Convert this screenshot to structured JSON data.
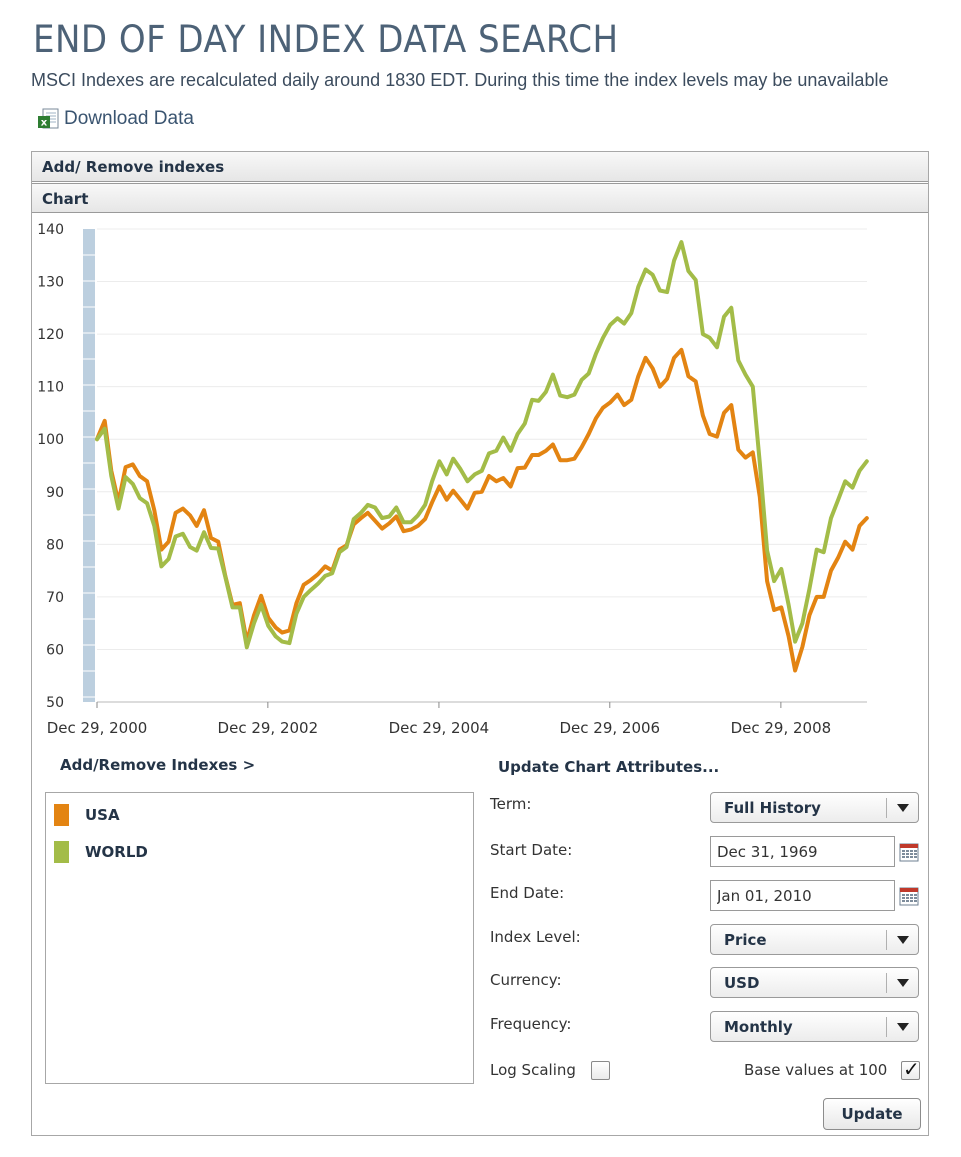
{
  "page": {
    "title": "END OF DAY INDEX DATA SEARCH",
    "subtitle": "MSCI Indexes are recalculated daily around 1830 EDT. During this time the index levels may be unavailable",
    "download_label": "Download Data"
  },
  "panel": {
    "add_remove_bar": "Add/ Remove indexes",
    "chart_bar": "Chart"
  },
  "colors": {
    "usa": "#e38412",
    "world": "#a3bc48",
    "axis_band": "#bccfdf",
    "grid": "#ececec"
  },
  "chart_data": {
    "type": "line",
    "title": "",
    "xlabel": "",
    "ylabel": "",
    "ylim": [
      50,
      140
    ],
    "y_ticks": [
      140,
      130,
      120,
      110,
      100,
      90,
      80,
      70,
      60,
      50
    ],
    "xlim": [
      "2000-12-29",
      "2010-01-01"
    ],
    "x_tick_labels": [
      "Dec 29, 2000",
      "Dec 29, 2002",
      "Dec 29, 2004",
      "Dec 29, 2006",
      "Dec 29, 2008"
    ],
    "x_tick_dates": [
      "2000-12-29",
      "2002-12-29",
      "2004-12-29",
      "2006-12-29",
      "2008-12-29"
    ],
    "grid": true,
    "series": [
      {
        "name": "USA",
        "color": "#e38412",
        "points": [
          [
            "2000-12-29",
            100.0
          ],
          [
            "2001-01-31",
            103.5
          ],
          [
            "2001-02-28",
            94.0
          ],
          [
            "2001-03-31",
            88.0
          ],
          [
            "2001-04-30",
            94.7
          ],
          [
            "2001-05-31",
            95.2
          ],
          [
            "2001-06-30",
            93.0
          ],
          [
            "2001-07-31",
            92.0
          ],
          [
            "2001-08-31",
            86.5
          ],
          [
            "2001-09-30",
            79.0
          ],
          [
            "2001-10-31",
            80.5
          ],
          [
            "2001-11-30",
            86.0
          ],
          [
            "2001-12-31",
            86.8
          ],
          [
            "2002-01-31",
            85.5
          ],
          [
            "2002-02-28",
            83.5
          ],
          [
            "2002-03-31",
            86.5
          ],
          [
            "2002-04-30",
            81.2
          ],
          [
            "2002-05-31",
            80.5
          ],
          [
            "2002-06-30",
            74.0
          ],
          [
            "2002-07-31",
            68.5
          ],
          [
            "2002-08-31",
            68.8
          ],
          [
            "2002-09-30",
            61.5
          ],
          [
            "2002-10-31",
            66.5
          ],
          [
            "2002-11-30",
            70.2
          ],
          [
            "2002-12-31",
            66.0
          ],
          [
            "2003-01-31",
            64.2
          ],
          [
            "2003-02-28",
            63.2
          ],
          [
            "2003-03-31",
            63.6
          ],
          [
            "2003-04-30",
            68.8
          ],
          [
            "2003-05-31",
            72.3
          ],
          [
            "2003-06-30",
            73.2
          ],
          [
            "2003-07-31",
            74.3
          ],
          [
            "2003-08-31",
            75.8
          ],
          [
            "2003-09-30",
            75.0
          ],
          [
            "2003-10-31",
            79.0
          ],
          [
            "2003-11-30",
            79.8
          ],
          [
            "2003-12-31",
            83.8
          ],
          [
            "2004-01-31",
            85.0
          ],
          [
            "2004-02-29",
            86.0
          ],
          [
            "2004-03-31",
            84.5
          ],
          [
            "2004-04-30",
            83.0
          ],
          [
            "2004-05-31",
            84.0
          ],
          [
            "2004-06-30",
            85.3
          ],
          [
            "2004-07-31",
            82.5
          ],
          [
            "2004-08-31",
            82.8
          ],
          [
            "2004-09-30",
            83.5
          ],
          [
            "2004-10-31",
            84.8
          ],
          [
            "2004-11-30",
            88.0
          ],
          [
            "2004-12-31",
            91.0
          ],
          [
            "2005-01-31",
            88.5
          ],
          [
            "2005-02-28",
            90.2
          ],
          [
            "2005-03-31",
            88.5
          ],
          [
            "2005-04-30",
            86.8
          ],
          [
            "2005-05-31",
            89.8
          ],
          [
            "2005-06-30",
            90.0
          ],
          [
            "2005-07-31",
            93.0
          ],
          [
            "2005-08-31",
            92.0
          ],
          [
            "2005-09-30",
            92.6
          ],
          [
            "2005-10-31",
            91.0
          ],
          [
            "2005-11-30",
            94.5
          ],
          [
            "2005-12-31",
            94.6
          ],
          [
            "2006-01-31",
            97.0
          ],
          [
            "2006-02-28",
            97.0
          ],
          [
            "2006-03-31",
            97.8
          ],
          [
            "2006-04-30",
            99.0
          ],
          [
            "2006-05-31",
            96.0
          ],
          [
            "2006-06-30",
            96.0
          ],
          [
            "2006-07-31",
            96.3
          ],
          [
            "2006-08-31",
            98.5
          ],
          [
            "2006-09-30",
            101.0
          ],
          [
            "2006-10-31",
            104.0
          ],
          [
            "2006-11-30",
            106.0
          ],
          [
            "2006-12-31",
            107.0
          ],
          [
            "2007-01-31",
            108.5
          ],
          [
            "2007-02-28",
            106.5
          ],
          [
            "2007-03-31",
            107.5
          ],
          [
            "2007-04-30",
            112.0
          ],
          [
            "2007-05-31",
            115.5
          ],
          [
            "2007-06-30",
            113.5
          ],
          [
            "2007-07-31",
            110.0
          ],
          [
            "2007-08-31",
            111.5
          ],
          [
            "2007-09-30",
            115.5
          ],
          [
            "2007-10-31",
            117.0
          ],
          [
            "2007-11-30",
            112.0
          ],
          [
            "2007-12-31",
            111.0
          ],
          [
            "2008-01-31",
            104.5
          ],
          [
            "2008-02-29",
            101.0
          ],
          [
            "2008-03-31",
            100.5
          ],
          [
            "2008-04-30",
            105.0
          ],
          [
            "2008-05-31",
            106.5
          ],
          [
            "2008-06-30",
            98.0
          ],
          [
            "2008-07-31",
            96.5
          ],
          [
            "2008-08-31",
            97.5
          ],
          [
            "2008-09-30",
            89.0
          ],
          [
            "2008-10-31",
            73.0
          ],
          [
            "2008-11-30",
            67.5
          ],
          [
            "2008-12-31",
            68.0
          ],
          [
            "2009-01-31",
            62.5
          ],
          [
            "2009-02-28",
            56.0
          ],
          [
            "2009-03-31",
            60.5
          ],
          [
            "2009-04-30",
            66.5
          ],
          [
            "2009-05-31",
            70.0
          ],
          [
            "2009-06-30",
            70.0
          ],
          [
            "2009-07-31",
            75.0
          ],
          [
            "2009-08-31",
            77.5
          ],
          [
            "2009-09-30",
            80.5
          ],
          [
            "2009-10-31",
            79.0
          ],
          [
            "2009-11-30",
            83.5
          ],
          [
            "2009-12-31",
            85.0
          ]
        ]
      },
      {
        "name": "WORLD",
        "color": "#a3bc48",
        "points": [
          [
            "2000-12-29",
            100.0
          ],
          [
            "2001-01-31",
            102.0
          ],
          [
            "2001-02-28",
            93.0
          ],
          [
            "2001-03-31",
            86.8
          ],
          [
            "2001-04-30",
            92.8
          ],
          [
            "2001-05-31",
            91.5
          ],
          [
            "2001-06-30",
            88.8
          ],
          [
            "2001-07-31",
            87.8
          ],
          [
            "2001-08-31",
            83.5
          ],
          [
            "2001-09-30",
            75.8
          ],
          [
            "2001-10-31",
            77.2
          ],
          [
            "2001-11-30",
            81.5
          ],
          [
            "2001-12-31",
            82.0
          ],
          [
            "2002-01-31",
            79.5
          ],
          [
            "2002-02-28",
            78.8
          ],
          [
            "2002-03-31",
            82.3
          ],
          [
            "2002-04-30",
            79.3
          ],
          [
            "2002-05-31",
            79.2
          ],
          [
            "2002-06-30",
            73.8
          ],
          [
            "2002-07-31",
            68.0
          ],
          [
            "2002-08-31",
            68.0
          ],
          [
            "2002-09-30",
            60.4
          ],
          [
            "2002-10-31",
            65.0
          ],
          [
            "2002-11-30",
            68.5
          ],
          [
            "2002-12-31",
            64.5
          ],
          [
            "2003-01-31",
            62.5
          ],
          [
            "2003-02-28",
            61.5
          ],
          [
            "2003-03-31",
            61.2
          ],
          [
            "2003-04-30",
            66.8
          ],
          [
            "2003-05-31",
            70.0
          ],
          [
            "2003-06-30",
            71.3
          ],
          [
            "2003-07-31",
            72.5
          ],
          [
            "2003-08-31",
            74.0
          ],
          [
            "2003-09-30",
            74.5
          ],
          [
            "2003-10-31",
            78.5
          ],
          [
            "2003-11-30",
            79.5
          ],
          [
            "2003-12-31",
            84.8
          ],
          [
            "2004-01-31",
            86.0
          ],
          [
            "2004-02-29",
            87.5
          ],
          [
            "2004-03-31",
            87.0
          ],
          [
            "2004-04-30",
            85.0
          ],
          [
            "2004-05-31",
            85.3
          ],
          [
            "2004-06-30",
            87.0
          ],
          [
            "2004-07-31",
            84.2
          ],
          [
            "2004-08-31",
            84.2
          ],
          [
            "2004-09-30",
            85.5
          ],
          [
            "2004-10-31",
            87.5
          ],
          [
            "2004-11-30",
            92.0
          ],
          [
            "2004-12-31",
            95.8
          ],
          [
            "2005-01-31",
            93.3
          ],
          [
            "2005-02-28",
            96.3
          ],
          [
            "2005-03-31",
            94.3
          ],
          [
            "2005-04-30",
            92.0
          ],
          [
            "2005-05-31",
            93.3
          ],
          [
            "2005-06-30",
            94.0
          ],
          [
            "2005-07-31",
            97.3
          ],
          [
            "2005-08-31",
            97.8
          ],
          [
            "2005-09-30",
            100.3
          ],
          [
            "2005-10-31",
            97.8
          ],
          [
            "2005-11-30",
            101.0
          ],
          [
            "2005-12-31",
            103.0
          ],
          [
            "2006-01-31",
            107.5
          ],
          [
            "2006-02-28",
            107.3
          ],
          [
            "2006-03-31",
            109.0
          ],
          [
            "2006-04-30",
            112.3
          ],
          [
            "2006-05-31",
            108.3
          ],
          [
            "2006-06-30",
            108.0
          ],
          [
            "2006-07-31",
            108.5
          ],
          [
            "2006-08-31",
            111.3
          ],
          [
            "2006-09-30",
            112.5
          ],
          [
            "2006-10-31",
            116.3
          ],
          [
            "2006-11-30",
            119.3
          ],
          [
            "2006-12-31",
            121.8
          ],
          [
            "2007-01-31",
            123.0
          ],
          [
            "2007-02-28",
            122.0
          ],
          [
            "2007-03-31",
            124.0
          ],
          [
            "2007-04-30",
            129.0
          ],
          [
            "2007-05-31",
            132.3
          ],
          [
            "2007-06-30",
            131.3
          ],
          [
            "2007-07-31",
            128.3
          ],
          [
            "2007-08-31",
            128.0
          ],
          [
            "2007-09-30",
            134.0
          ],
          [
            "2007-10-31",
            137.5
          ],
          [
            "2007-11-30",
            132.0
          ],
          [
            "2007-12-31",
            130.3
          ],
          [
            "2008-01-31",
            120.0
          ],
          [
            "2008-02-29",
            119.3
          ],
          [
            "2008-03-31",
            117.5
          ],
          [
            "2008-04-30",
            123.3
          ],
          [
            "2008-05-31",
            125.0
          ],
          [
            "2008-06-30",
            115.0
          ],
          [
            "2008-07-31",
            112.3
          ],
          [
            "2008-08-31",
            110.0
          ],
          [
            "2008-09-30",
            95.5
          ],
          [
            "2008-10-31",
            78.8
          ],
          [
            "2008-11-30",
            73.0
          ],
          [
            "2008-12-31",
            75.3
          ],
          [
            "2009-01-31",
            68.5
          ],
          [
            "2009-02-28",
            61.5
          ],
          [
            "2009-03-31",
            65.0
          ],
          [
            "2009-04-30",
            71.5
          ],
          [
            "2009-05-31",
            79.0
          ],
          [
            "2009-06-30",
            78.5
          ],
          [
            "2009-07-31",
            85.0
          ],
          [
            "2009-08-31",
            88.5
          ],
          [
            "2009-09-30",
            92.0
          ],
          [
            "2009-10-31",
            90.8
          ],
          [
            "2009-11-30",
            94.0
          ],
          [
            "2009-12-31",
            95.8
          ]
        ]
      }
    ]
  },
  "indexes": {
    "title": "Add/Remove Indexes >",
    "items": [
      {
        "name": "USA",
        "color": "#e38412"
      },
      {
        "name": "WORLD",
        "color": "#a3bc48"
      }
    ]
  },
  "attributes": {
    "title": "Update Chart Attributes...",
    "term_label": "Term:",
    "term_value": "Full History",
    "start_label": "Start Date:",
    "start_value": "Dec 31, 1969",
    "end_label": "End Date:",
    "end_value": "Jan 01, 2010",
    "index_level_label": "Index Level:",
    "index_level_value": "Price",
    "currency_label": "Currency:",
    "currency_value": "USD",
    "frequency_label": "Frequency:",
    "frequency_value": "Monthly",
    "log_scaling_label": "Log Scaling",
    "base_values_label": "Base values at 100",
    "update_label": "Update"
  },
  "icons": {
    "download": "excel-file-icon",
    "calendar": "calendar-icon",
    "dropdown": "chevron-down-icon"
  }
}
